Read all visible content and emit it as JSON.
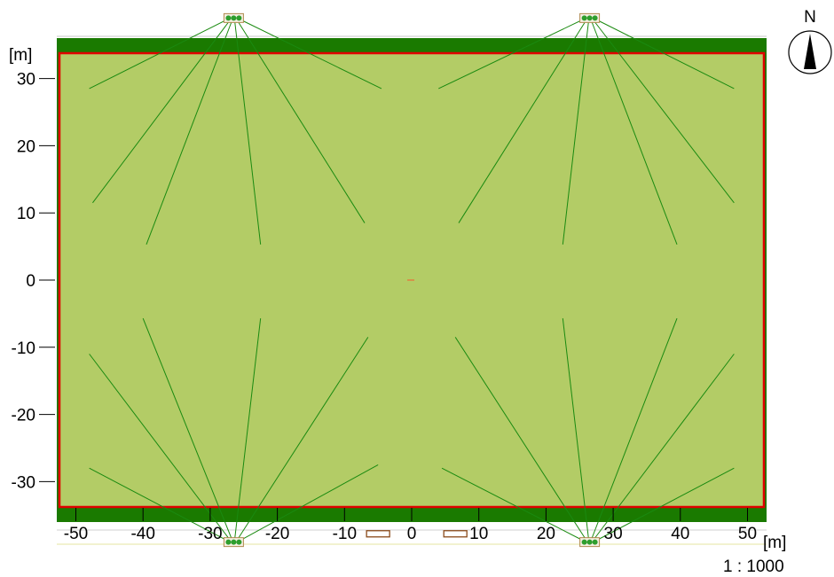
{
  "plan": {
    "x_unit_label": "[m]",
    "y_unit_label": "[m]",
    "x_ticks": [
      -50,
      -40,
      -30,
      -20,
      -10,
      0,
      10,
      20,
      30,
      40,
      50
    ],
    "y_ticks": [
      30,
      20,
      10,
      0,
      -10,
      -20,
      -30
    ],
    "x_range": [
      -53,
      53
    ],
    "y_range": [
      -36,
      36
    ],
    "scale_label": "1 : 1000",
    "north_label": "N",
    "colors": {
      "field": "#b3cc66",
      "border_band": "#1a7a00",
      "field_outline": "#e00000",
      "beam_line": "#1a8a10",
      "pole_marker": "#2e9e2e"
    },
    "poles": [
      {
        "id": "pole-nw",
        "x": -26.5,
        "y": 39,
        "aims": [
          [
            -48,
            28.5
          ],
          [
            -47.5,
            11.5
          ],
          [
            -39.5,
            5.3
          ],
          [
            -22.5,
            5.3
          ],
          [
            -7,
            8.5
          ],
          [
            -4.5,
            28.5
          ]
        ]
      },
      {
        "id": "pole-ne",
        "x": 26.5,
        "y": 39,
        "aims": [
          [
            4,
            28.5
          ],
          [
            7,
            8.5
          ],
          [
            22.5,
            5.3
          ],
          [
            39.5,
            5.3
          ],
          [
            48,
            11.5
          ],
          [
            48,
            28.5
          ]
        ]
      },
      {
        "id": "pole-sw",
        "x": -26.5,
        "y": -39,
        "aims": [
          [
            -48,
            -28
          ],
          [
            -48,
            -11
          ],
          [
            -40,
            -5.7
          ],
          [
            -22.5,
            -5.7
          ],
          [
            -6.5,
            -8.5
          ],
          [
            -5,
            -27.5
          ]
        ]
      },
      {
        "id": "pole-se",
        "x": 26.5,
        "y": -39,
        "aims": [
          [
            4.5,
            -28
          ],
          [
            6.5,
            -8.5
          ],
          [
            22.5,
            -5.7
          ],
          [
            39.5,
            -5.7
          ],
          [
            48,
            -11
          ],
          [
            48,
            -28
          ]
        ]
      }
    ],
    "benches": [
      {
        "id": "bench-west",
        "x": -5,
        "y": -37.7
      },
      {
        "id": "bench-east",
        "x": 6.5,
        "y": -37.7
      }
    ]
  }
}
